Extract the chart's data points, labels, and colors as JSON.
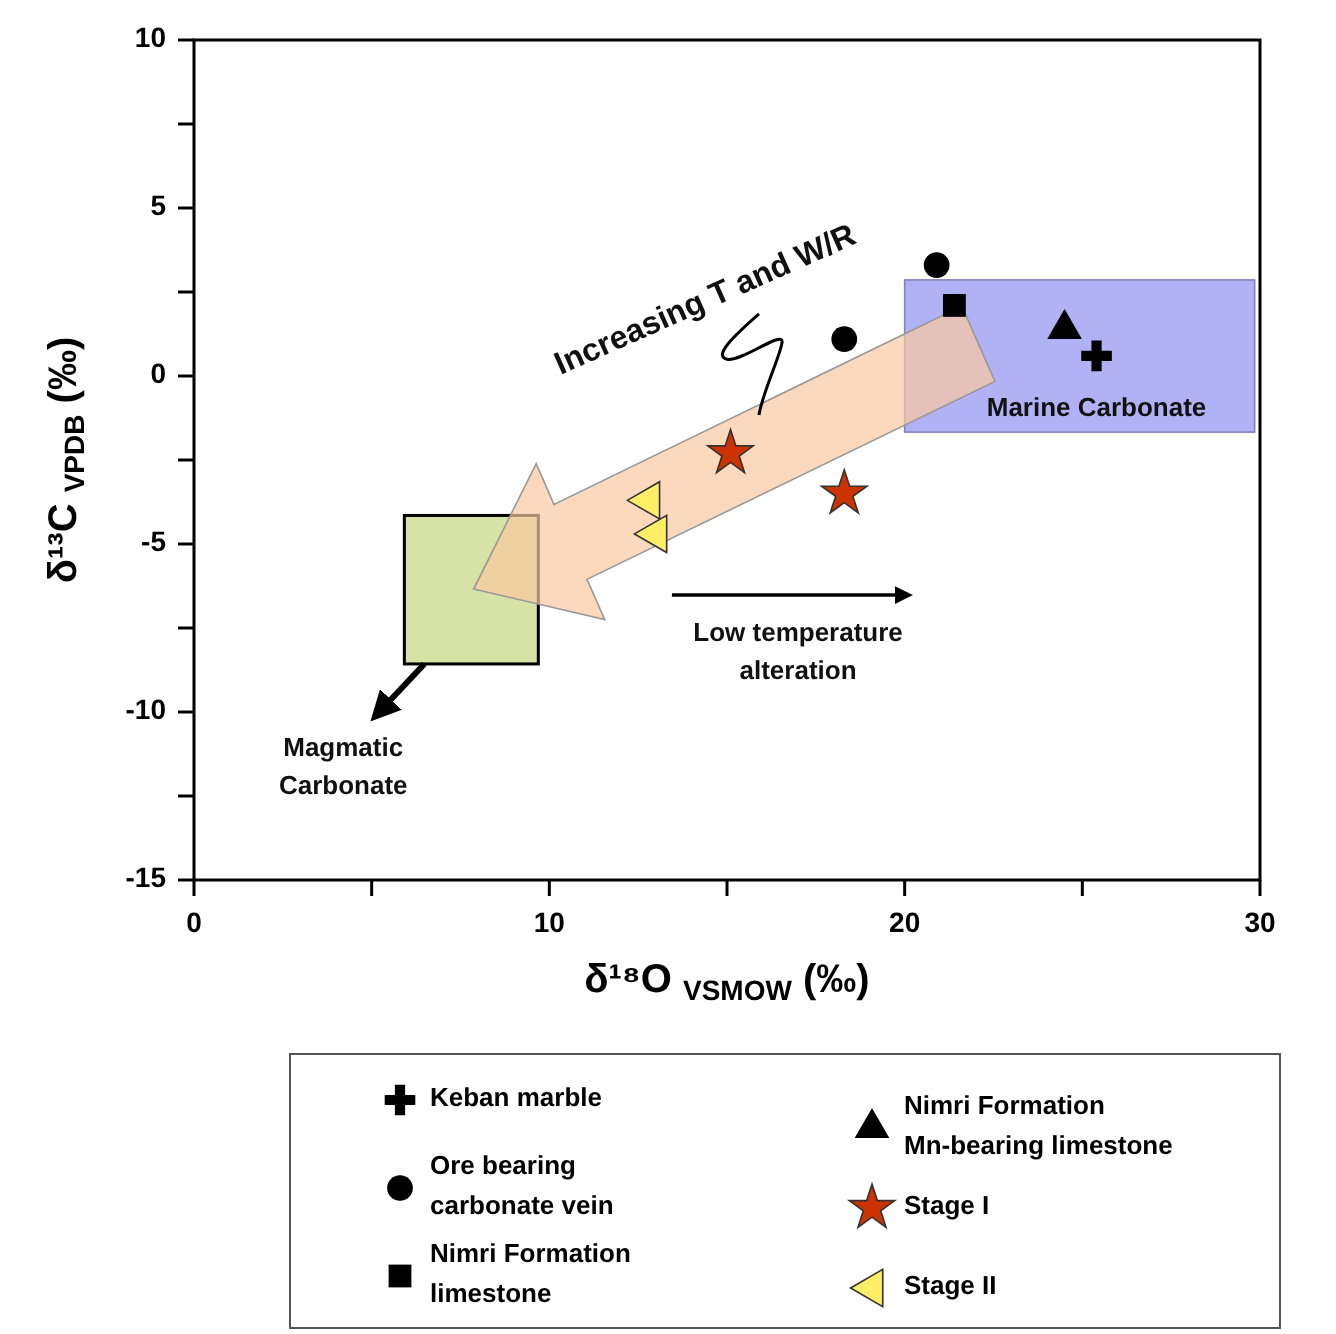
{
  "chart_data": {
    "type": "scatter",
    "xlabel": "δ¹⁸O $_{VSMOW}$ (‰)",
    "ylabel": "δ¹³C $_{VPDB}$ (‰)",
    "xlim": [
      0,
      30
    ],
    "xticks": [
      0,
      {
        "value": 5,
        "label": null
      },
      10,
      {
        "value": 15,
        "label": null
      },
      20,
      {
        "value": 25,
        "label": null
      },
      30
    ],
    "ylim": [
      -15,
      10
    ],
    "yticks": [
      -15,
      {
        "value": -12.5,
        "label": null
      },
      -10,
      {
        "value": -7.5,
        "label": null
      },
      -5,
      {
        "value": -2.5,
        "label": null
      },
      0,
      {
        "value": 2.5,
        "label": null
      },
      5,
      {
        "value": 7.5,
        "label": null
      },
      10
    ],
    "legend": "bottom",
    "grid": false,
    "series": [
      {
        "name": "Keban marble",
        "color": "#000000",
        "marker": "cross",
        "x": [
          25.4
        ],
        "values": [
          0.6
        ]
      },
      {
        "name": "Ore bearing carbonate vein",
        "color": "#000000",
        "marker": "circle",
        "x": [
          20.9,
          18.3
        ],
        "values": [
          3.3,
          1.1
        ]
      },
      {
        "name": "Nimri Formation limestone",
        "color": "#000000",
        "marker": "square",
        "x": [
          21.4
        ],
        "values": [
          2.1
        ]
      },
      {
        "name": "Nimri Formation Mn-bearing limestone",
        "color": "#000000",
        "marker": "triangle",
        "x": [
          24.5
        ],
        "values": [
          1.4
        ]
      },
      {
        "name": "Stage I",
        "color": "#cc3300",
        "marker": "star",
        "x": [
          15.1,
          18.3
        ],
        "values": [
          -2.3,
          -3.5
        ]
      },
      {
        "name": "Stage II",
        "color": "#ffee66",
        "marker": "triangle-left",
        "x": [
          12.8,
          13.0
        ],
        "values": [
          -3.7,
          -4.7
        ]
      }
    ],
    "annotations": [
      "Increasing T and W/R",
      "Marine Carbonate",
      "Low temperature alteration",
      "Magmatic Carbonate"
    ]
  }
}
